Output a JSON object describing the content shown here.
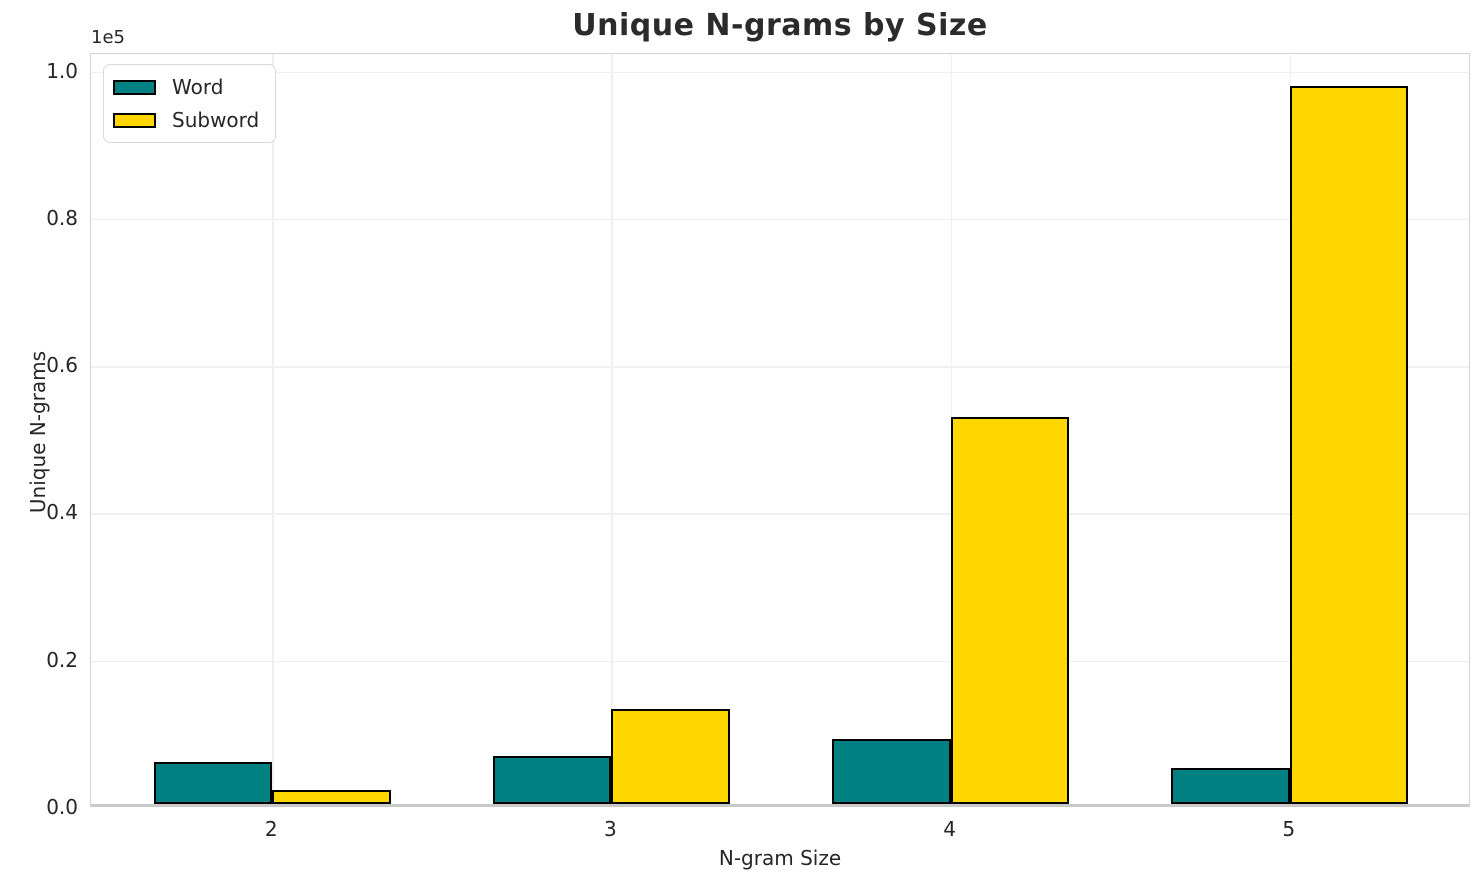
{
  "chart_data": {
    "type": "bar",
    "title": "Unique N-grams by Size",
    "xlabel": "N-gram Size",
    "ylabel": "Unique N-grams",
    "categories": [
      "2",
      "3",
      "4",
      "5"
    ],
    "series": [
      {
        "name": "Word",
        "color": "#008080",
        "values": [
          5700,
          6500,
          8800,
          4900
        ]
      },
      {
        "name": "Subword",
        "color": "#FFD700",
        "values": [
          1900,
          12900,
          52600,
          97500
        ]
      }
    ],
    "bar_edge_color": "#000000",
    "ylim": [
      0,
      102375
    ],
    "yticks": {
      "values": [
        0,
        20000,
        40000,
        60000,
        80000,
        100000
      ],
      "labels": [
        "0.0",
        "0.2",
        "0.4",
        "0.6",
        "0.8",
        "1.0"
      ],
      "offset_label": "1e5"
    },
    "grid": true,
    "legend_position": "upper left"
  },
  "colors": {
    "grid": "#f0f0f0",
    "spine": "#d4d4d4",
    "text": "#262626",
    "background": "#ffffff"
  }
}
